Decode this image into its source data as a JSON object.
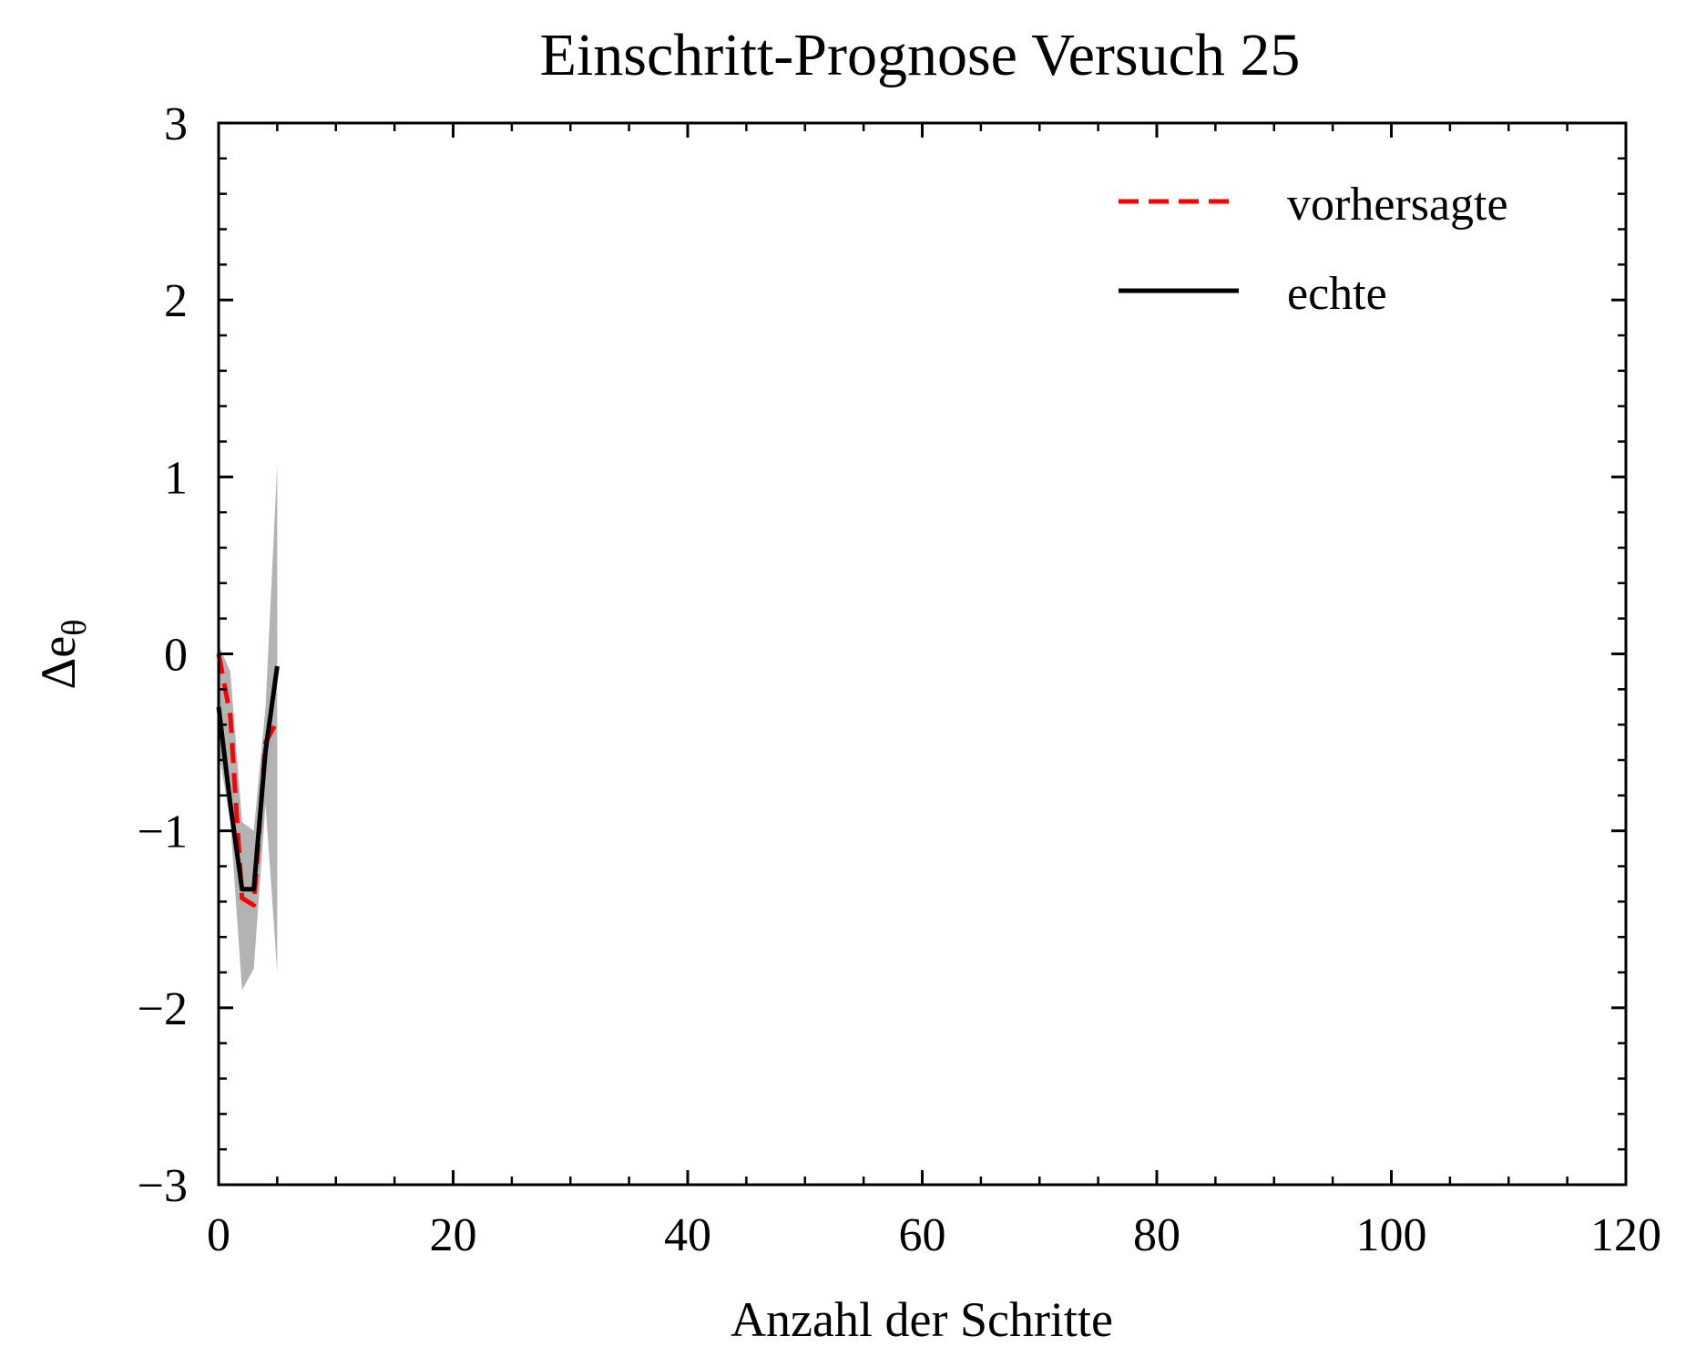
{
  "chart_data": {
    "type": "line",
    "title": "Einschritt-Prognose Versuch 25",
    "xlabel": "Anzahl der Schritte",
    "ylabel": "Δe",
    "ylabel_sub": "θ",
    "xlim": [
      0,
      120
    ],
    "ylim": [
      -3,
      3
    ],
    "xticks": [
      0,
      20,
      40,
      60,
      80,
      100,
      120
    ],
    "xtick_labels": [
      "0",
      "20",
      "40",
      "60",
      "80",
      "100",
      "120"
    ],
    "yticks": [
      -3,
      -2,
      -1,
      0,
      1,
      2,
      3
    ],
    "ytick_labels": [
      "−3",
      "−2",
      "−1",
      "0",
      "1",
      "2",
      "3"
    ],
    "grid": false,
    "legend_position": "top-right",
    "series": [
      {
        "name": "vorhersagte",
        "style": "dashed",
        "color": "#ff0000",
        "x": [
          0,
          1,
          2,
          3,
          4,
          5
        ],
        "y": [
          0.0,
          -0.35,
          -1.38,
          -1.42,
          -0.5,
          -0.38
        ]
      },
      {
        "name": "echte",
        "style": "solid",
        "color": "#000000",
        "x": [
          0,
          1,
          2,
          3,
          4,
          5
        ],
        "y": [
          -0.3,
          -0.85,
          -1.33,
          -1.33,
          -0.55,
          -0.07
        ]
      }
    ],
    "uncertainty_band": {
      "color": "#b3b3b3",
      "x": [
        0,
        1,
        2,
        3,
        4,
        5
      ],
      "upper": [
        0.05,
        -0.1,
        -0.95,
        -1.0,
        -0.3,
        1.07
      ],
      "lower": [
        -0.55,
        -0.95,
        -1.9,
        -1.78,
        -0.85,
        -1.8
      ]
    }
  }
}
